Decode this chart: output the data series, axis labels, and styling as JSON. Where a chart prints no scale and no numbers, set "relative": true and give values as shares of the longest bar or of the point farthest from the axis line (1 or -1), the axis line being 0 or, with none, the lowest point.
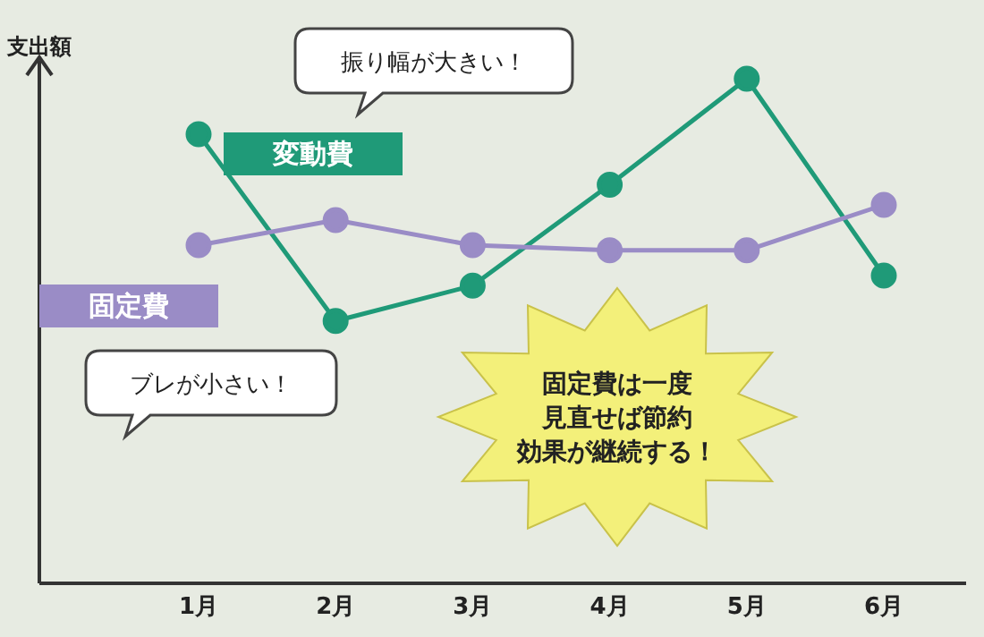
{
  "chart_data": {
    "type": "line",
    "ylabel": "支出額",
    "categories": [
      "1月",
      "2月",
      "3月",
      "4月",
      "5月",
      "6月"
    ],
    "relative": true,
    "marker": "circle",
    "line_style": "solid",
    "grid": false,
    "legend": false,
    "series": [
      {
        "name": "変動費",
        "color": "#1f9a78",
        "values": [
          0.89,
          0.52,
          0.59,
          0.79,
          1,
          0.61
        ]
      },
      {
        "name": "固定費",
        "color": "#9a8cc6",
        "values": [
          0.67,
          0.72,
          0.67,
          0.66,
          0.66,
          0.75
        ]
      }
    ],
    "annotations": [
      "振り幅が大きい！",
      "ブレが小さい！",
      "固定費は一度見直せば節約効果が継続する！"
    ]
  }
}
